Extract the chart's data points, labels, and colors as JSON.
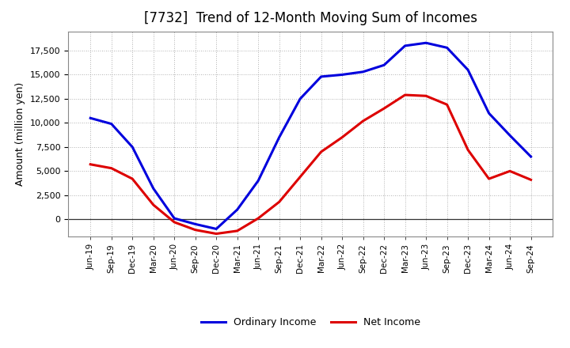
{
  "title": "[7732]  Trend of 12-Month Moving Sum of Incomes",
  "ylabel": "Amount (million yen)",
  "background_color": "#ffffff",
  "plot_bg_color": "#ffffff",
  "grid_color": "#999999",
  "ylim": [
    -1800,
    19500
  ],
  "yticks": [
    0,
    2500,
    5000,
    7500,
    10000,
    12500,
    15000,
    17500
  ],
  "x_labels": [
    "Jun-19",
    "Sep-19",
    "Dec-19",
    "Mar-20",
    "Jun-20",
    "Sep-20",
    "Dec-20",
    "Mar-21",
    "Jun-21",
    "Sep-21",
    "Dec-21",
    "Mar-22",
    "Jun-22",
    "Sep-22",
    "Dec-22",
    "Mar-23",
    "Jun-23",
    "Sep-23",
    "Dec-23",
    "Mar-24",
    "Jun-24",
    "Sep-24"
  ],
  "ordinary_income": [
    10500,
    9900,
    7500,
    3200,
    100,
    -500,
    -1000,
    1000,
    4000,
    8500,
    12500,
    14800,
    15000,
    15300,
    16000,
    18000,
    18300,
    17800,
    15500,
    11000,
    8700,
    6500
  ],
  "net_income": [
    5700,
    5300,
    4200,
    1500,
    -300,
    -1100,
    -1500,
    -1200,
    100,
    1800,
    4400,
    7000,
    8500,
    10200,
    11500,
    12900,
    12800,
    11900,
    7200,
    4200,
    5000,
    4100
  ],
  "ordinary_income_color": "#0000dd",
  "net_income_color": "#dd0000",
  "line_width": 2.2,
  "legend_ordinary": "Ordinary Income",
  "legend_net": "Net Income",
  "title_fontsize": 12,
  "ylabel_fontsize": 9,
  "tick_fontsize": 8,
  "xtick_fontsize": 7.5
}
